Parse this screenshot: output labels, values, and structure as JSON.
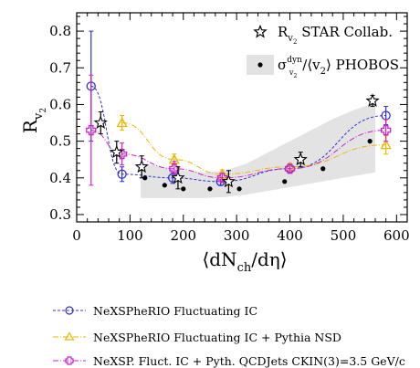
{
  "chart_data": {
    "type": "scatter",
    "title": "",
    "xlabel_main": "⟨dN",
    "xlabel_sub": "ch",
    "xlabel_tail": "/dη⟩",
    "ylabel_main": "R",
    "ylabel_sub": "v",
    "ylabel_subsub": "2",
    "xlim": [
      0,
      620
    ],
    "ylim": [
      0.28,
      0.85
    ],
    "xticks": [
      "0",
      "100",
      "200",
      "300",
      "400",
      "500",
      "600"
    ],
    "yticks": [
      "0.3",
      "0.4",
      "0.5",
      "0.6",
      "0.7",
      "0.8"
    ],
    "legend_top": [
      {
        "id": "star",
        "main": "R",
        "sub": "v",
        "subsub": "2",
        "tail": " STAR Collab."
      },
      {
        "id": "phobos",
        "main": "σ",
        "sup": "dyn",
        "supsub": "v",
        "supsubsub": "2",
        "tail": "/⟨v",
        "tailsub": "2",
        "tailend": "⟩ PHOBOS"
      }
    ],
    "series": [
      {
        "id": "star",
        "color": "#000000",
        "marker": "star",
        "x": [
          45,
          75,
          122,
          190,
          285,
          420,
          555
        ],
        "y": [
          0.55,
          0.47,
          0.43,
          0.4,
          0.39,
          0.45,
          0.61
        ],
        "err": [
          0.03,
          0.03,
          0.03,
          0.03,
          0.03,
          0.02,
          0.015
        ]
      },
      {
        "id": "phobos",
        "color": "#000000",
        "marker": "dot",
        "x": [
          128,
          165,
          200,
          250,
          305,
          390,
          462,
          550
        ],
        "y": [
          0.4,
          0.38,
          0.37,
          0.37,
          0.37,
          0.39,
          0.425,
          0.5
        ],
        "band_x": [
          120,
          160,
          200,
          240,
          280,
          320,
          360,
          400,
          440,
          480,
          520,
          560
        ],
        "band_lo": [
          0.345,
          0.345,
          0.345,
          0.345,
          0.348,
          0.355,
          0.365,
          0.375,
          0.385,
          0.395,
          0.405,
          0.415
        ],
        "band_hi": [
          0.44,
          0.43,
          0.42,
          0.415,
          0.42,
          0.44,
          0.47,
          0.5,
          0.53,
          0.56,
          0.585,
          0.605
        ]
      },
      {
        "id": "nexspherio-ic",
        "name": "NeXSPheRIO Fluctuating IC",
        "color": "#3030d0",
        "marker": "circle",
        "x": [
          27,
          85,
          180,
          270,
          400,
          580
        ],
        "y": [
          0.65,
          0.41,
          0.4,
          0.39,
          0.425,
          0.57
        ],
        "err": [
          0.15,
          0.02,
          0.015,
          0.01,
          0.01,
          0.025
        ]
      },
      {
        "id": "nexspherio-nsd",
        "name": "NeXSPheRIO Fluctuating IC + Pythia NSD",
        "color": "#e8b800",
        "marker": "triangle",
        "x": [
          85,
          183,
          273,
          400,
          580
        ],
        "y": [
          0.55,
          0.45,
          0.41,
          0.43,
          0.49
        ],
        "err": [
          0.02,
          0.015,
          0.012,
          0.01,
          0.025
        ]
      },
      {
        "id": "nexsp-qcd",
        "name": "NeXSP. Fluct. IC + Pyth. QCDJets CKIN(3)=3.5 GeV/c",
        "color": "#cc22cc",
        "marker": "cross",
        "x": [
          27,
          85,
          183,
          273,
          400,
          580
        ],
        "y": [
          0.53,
          0.465,
          0.425,
          0.4,
          0.425,
          0.53
        ],
        "err": [
          0.15,
          0.03,
          0.02,
          0.012,
          0.01,
          0.03
        ]
      }
    ],
    "legend_bottom_names": [
      "NeXSPheRIO Fluctuating IC",
      "NeXSPheRIO Fluctuating IC + Pythia NSD",
      "NeXSP. Fluct. IC + Pyth. QCDJets CKIN(3)=3.5 GeV/c"
    ]
  }
}
